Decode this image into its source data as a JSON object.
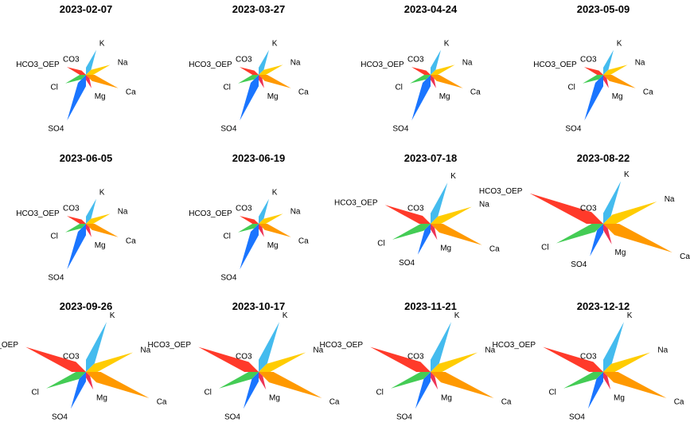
{
  "chart_data": {
    "type": "radial-stiff",
    "variables": [
      "Ca",
      "Mg",
      "SO4",
      "Cl",
      "HCO3_OEP",
      "CO3",
      "K",
      "Na"
    ],
    "colors": {
      "Ca": "#ff9900",
      "Mg": "#ee3355",
      "SO4": "#1a75ff",
      "Cl": "#44cc55",
      "HCO3_OEP": "#ff3a2a",
      "CO3": "#44bbee",
      "K": "#44bbee",
      "Na": "#ffcc00"
    },
    "panels": [
      {
        "title": "2023-02-07",
        "values": {
          "Ca": 44,
          "Mg": 18,
          "SO4": 62,
          "Cl": 28,
          "HCO3_OEP": 26,
          "CO3": 1,
          "K": 34,
          "Na": 33
        }
      },
      {
        "title": "2023-03-27",
        "values": {
          "Ca": 44,
          "Mg": 18,
          "SO4": 62,
          "Cl": 28,
          "HCO3_OEP": 26,
          "CO3": 1,
          "K": 34,
          "Na": 33
        }
      },
      {
        "title": "2023-04-24",
        "values": {
          "Ca": 44,
          "Mg": 18,
          "SO4": 62,
          "Cl": 28,
          "HCO3_OEP": 26,
          "CO3": 1,
          "K": 34,
          "Na": 33
        }
      },
      {
        "title": "2023-05-09",
        "values": {
          "Ca": 44,
          "Mg": 18,
          "SO4": 62,
          "Cl": 28,
          "HCO3_OEP": 26,
          "CO3": 1,
          "K": 34,
          "Na": 33
        }
      },
      {
        "title": "2023-06-05",
        "values": {
          "Ca": 44,
          "Mg": 18,
          "SO4": 62,
          "Cl": 28,
          "HCO3_OEP": 26,
          "CO3": 1,
          "K": 34,
          "Na": 33
        }
      },
      {
        "title": "2023-06-19",
        "values": {
          "Ca": 44,
          "Mg": 18,
          "SO4": 62,
          "Cl": 28,
          "HCO3_OEP": 26,
          "CO3": 1,
          "K": 34,
          "Na": 33
        }
      },
      {
        "title": "2023-07-18",
        "values": {
          "Ca": 70,
          "Mg": 22,
          "SO4": 42,
          "Cl": 52,
          "HCO3_OEP": 62,
          "CO3": 1,
          "K": 56,
          "Na": 56
        }
      },
      {
        "title": "2023-08-22",
        "values": {
          "Ca": 94,
          "Mg": 28,
          "SO4": 44,
          "Cl": 64,
          "HCO3_OEP": 100,
          "CO3": 1,
          "K": 58,
          "Na": 73
        }
      },
      {
        "title": "2023-09-26",
        "values": {
          "Ca": 86,
          "Mg": 24,
          "SO4": 50,
          "Cl": 54,
          "HCO3_OEP": 82,
          "CO3": 1,
          "K": 68,
          "Na": 64
        }
      },
      {
        "title": "2023-10-17",
        "values": {
          "Ca": 86,
          "Mg": 24,
          "SO4": 50,
          "Cl": 54,
          "HCO3_OEP": 82,
          "CO3": 1,
          "K": 68,
          "Na": 64
        }
      },
      {
        "title": "2023-11-21",
        "values": {
          "Ca": 86,
          "Mg": 24,
          "SO4": 50,
          "Cl": 54,
          "HCO3_OEP": 82,
          "CO3": 1,
          "K": 68,
          "Na": 64
        }
      },
      {
        "title": "2023-12-12",
        "values": {
          "Ca": 86,
          "Mg": 24,
          "SO4": 50,
          "Cl": 54,
          "HCO3_OEP": 82,
          "CO3": 1,
          "K": 68,
          "Na": 64
        }
      }
    ]
  }
}
